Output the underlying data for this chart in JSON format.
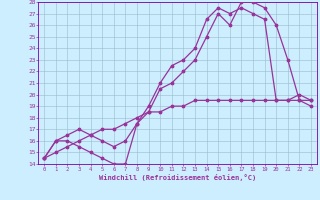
{
  "xlabel": "Windchill (Refroidissement éolien,°C)",
  "bg_color": "#cceeff",
  "grid_color": "#99bbcc",
  "line_color": "#993399",
  "border_color": "#7700aa",
  "xlim": [
    -0.5,
    23.5
  ],
  "ylim": [
    14,
    28
  ],
  "xticks": [
    0,
    1,
    2,
    3,
    4,
    5,
    6,
    7,
    8,
    9,
    10,
    11,
    12,
    13,
    14,
    15,
    16,
    17,
    18,
    19,
    20,
    21,
    22,
    23
  ],
  "yticks": [
    14,
    15,
    16,
    17,
    18,
    19,
    20,
    21,
    22,
    23,
    24,
    25,
    26,
    27,
    28
  ],
  "line1_x": [
    0,
    1,
    2,
    3,
    4,
    5,
    6,
    7,
    8,
    9,
    10,
    11,
    12,
    13,
    14,
    15,
    16,
    17,
    18,
    19,
    20,
    21,
    22,
    23
  ],
  "line1_y": [
    14.5,
    16.0,
    16.0,
    15.5,
    15.0,
    14.5,
    14.0,
    14.0,
    17.5,
    18.5,
    20.5,
    21.0,
    22.0,
    23.0,
    25.0,
    27.0,
    26.0,
    28.0,
    28.0,
    27.5,
    26.0,
    23.0,
    19.5,
    19.0
  ],
  "line2_x": [
    0,
    1,
    2,
    3,
    4,
    5,
    6,
    7,
    8,
    9,
    10,
    11,
    12,
    13,
    14,
    15,
    16,
    17,
    18,
    19,
    20,
    21,
    22,
    23
  ],
  "line2_y": [
    14.5,
    16.0,
    16.5,
    17.0,
    16.5,
    16.0,
    15.5,
    16.0,
    17.5,
    19.0,
    21.0,
    22.5,
    23.0,
    24.0,
    26.5,
    27.5,
    27.0,
    27.5,
    27.0,
    26.5,
    19.5,
    19.5,
    20.0,
    19.5
  ],
  "line3_x": [
    0,
    1,
    2,
    3,
    4,
    5,
    6,
    7,
    8,
    9,
    10,
    11,
    12,
    13,
    14,
    15,
    16,
    17,
    18,
    19,
    20,
    21,
    22,
    23
  ],
  "line3_y": [
    14.5,
    15.0,
    15.5,
    16.0,
    16.5,
    17.0,
    17.0,
    17.5,
    18.0,
    18.5,
    18.5,
    19.0,
    19.0,
    19.5,
    19.5,
    19.5,
    19.5,
    19.5,
    19.5,
    19.5,
    19.5,
    19.5,
    19.5,
    19.5
  ]
}
